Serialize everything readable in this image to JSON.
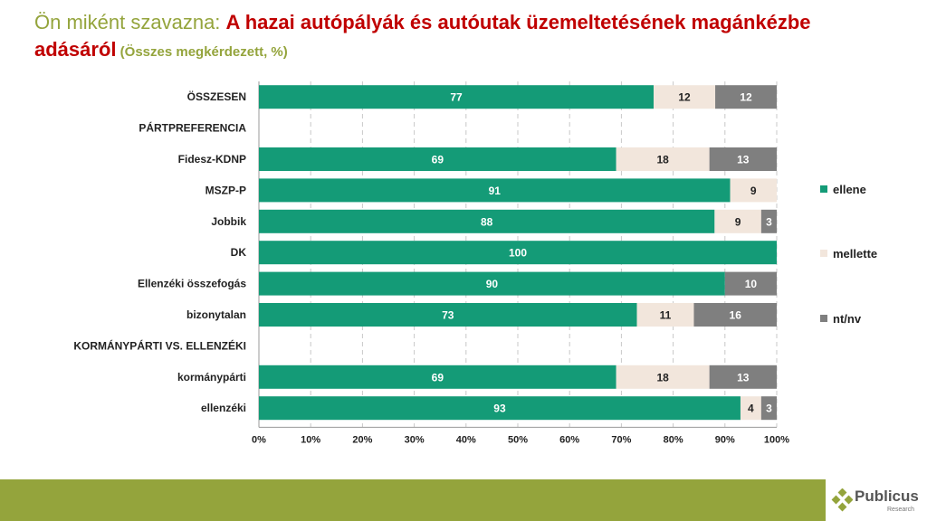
{
  "title": {
    "prefix": "Ön miként szavazna: ",
    "main": "A hazai autópályák és autóutak üzemeltetésének magánkézbe adásáról",
    "note": " (Összes megkérdezett, %)"
  },
  "logo": {
    "name": "Publicus",
    "sub": "Research"
  },
  "chart_data": {
    "type": "bar",
    "orientation": "horizontal-stacked-100",
    "categories": [
      "ÖSSZESEN",
      "PÁRTPREFERENCIA",
      "Fidesz-KDNP",
      "MSZP-P",
      "Jobbik",
      "DK",
      "Ellenzéki összefogás",
      "bizonytalan",
      "KORMÁNYPÁRTI VS. ELLENZÉKI",
      "kormánypárti",
      "ellenzéki"
    ],
    "series": [
      {
        "name": "ellene",
        "color": "#149b77",
        "values": [
          77,
          null,
          69,
          91,
          88,
          100,
          90,
          73,
          null,
          69,
          93
        ]
      },
      {
        "name": "mellette",
        "color": "#f2e6dc",
        "values": [
          12,
          null,
          18,
          9,
          9,
          0,
          0,
          11,
          null,
          18,
          4
        ]
      },
      {
        "name": "nt/nv",
        "color": "#7f7f7f",
        "values": [
          12,
          null,
          13,
          0,
          3,
          0,
          10,
          16,
          null,
          13,
          3
        ]
      }
    ],
    "xticks": [
      "0%",
      "10%",
      "20%",
      "30%",
      "40%",
      "50%",
      "60%",
      "70%",
      "80%",
      "90%",
      "100%"
    ],
    "xlim": [
      0,
      100
    ],
    "grid": "vertical dashed",
    "legend": "right"
  }
}
